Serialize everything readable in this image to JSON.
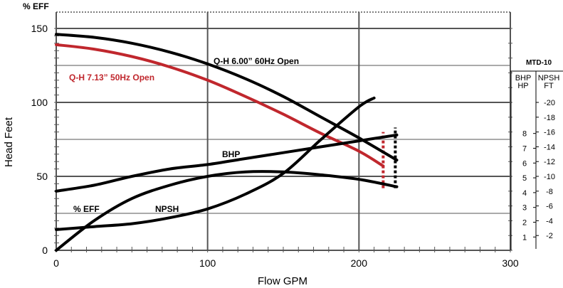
{
  "chart_data": {
    "type": "line",
    "title": "",
    "xlabel": "Flow GPM",
    "ylabel": "Head Feet",
    "secondary_ylabel": "% EFF",
    "xlim": [
      0,
      300
    ],
    "ylim": [
      0,
      150
    ],
    "x_ticks": [
      0,
      100,
      200,
      300
    ],
    "y_ticks": [
      0,
      50,
      100,
      150
    ],
    "grid": true,
    "legend": "none",
    "series": [
      {
        "name": "Q-H 6.00” 60Hz Open",
        "color": "#000000",
        "points": [
          [
            0,
            146
          ],
          [
            25,
            144
          ],
          [
            50,
            140
          ],
          [
            75,
            134
          ],
          [
            100,
            126
          ],
          [
            125,
            116
          ],
          [
            150,
            104
          ],
          [
            175,
            90
          ],
          [
            200,
            76
          ],
          [
            225,
            61
          ]
        ]
      },
      {
        "name": "Q-H 7.13” 50Hz Open",
        "color": "#c0272d",
        "points": [
          [
            0,
            139
          ],
          [
            25,
            136
          ],
          [
            50,
            131
          ],
          [
            75,
            124
          ],
          [
            100,
            115
          ],
          [
            125,
            104
          ],
          [
            150,
            92
          ],
          [
            175,
            79
          ],
          [
            200,
            67
          ],
          [
            216,
            57
          ]
        ]
      },
      {
        "name": "BHP",
        "color": "#000000",
        "points": [
          [
            0,
            40
          ],
          [
            25,
            44
          ],
          [
            50,
            50
          ],
          [
            75,
            55
          ],
          [
            100,
            58
          ],
          [
            125,
            62
          ],
          [
            150,
            66
          ],
          [
            175,
            70
          ],
          [
            200,
            74
          ],
          [
            225,
            78
          ]
        ]
      },
      {
        "name": "% EFF",
        "color": "#000000",
        "points": [
          [
            0,
            0
          ],
          [
            25,
            20
          ],
          [
            50,
            35
          ],
          [
            75,
            44
          ],
          [
            100,
            50
          ],
          [
            125,
            53
          ],
          [
            150,
            53
          ],
          [
            175,
            51
          ],
          [
            200,
            48
          ],
          [
            225,
            43
          ]
        ]
      },
      {
        "name": "NPSH",
        "color": "#000000",
        "points": [
          [
            0,
            14
          ],
          [
            25,
            16
          ],
          [
            50,
            18
          ],
          [
            75,
            22
          ],
          [
            100,
            28
          ],
          [
            125,
            38
          ],
          [
            150,
            52
          ],
          [
            175,
            75
          ],
          [
            200,
            97
          ],
          [
            210,
            103
          ]
        ]
      }
    ],
    "cutoff_lines": [
      {
        "x": 216,
        "y_from": 42,
        "y_to": 80,
        "color": "#c0272d",
        "style": "dashed"
      },
      {
        "x": 224,
        "y_from": 42,
        "y_to": 83,
        "color": "#000000",
        "style": "dashed"
      }
    ],
    "side_scale": {
      "title": "MTD-10",
      "bhp_header": [
        "BHP",
        "HP"
      ],
      "npsh_header": [
        "NPSH",
        "FT"
      ],
      "bhp_ticks": [
        {
          "label": "8",
          "y": 79
        },
        {
          "label": "7",
          "y": 69
        },
        {
          "label": "6",
          "y": 59
        },
        {
          "label": "5",
          "y": 49
        },
        {
          "label": "4",
          "y": 39
        },
        {
          "label": "3",
          "y": 29
        },
        {
          "label": "2",
          "y": 19
        },
        {
          "label": "1",
          "y": 9
        }
      ],
      "npsh_ticks": [
        {
          "label": "-20",
          "y": 100
        },
        {
          "label": "-18",
          "y": 90
        },
        {
          "label": "-16",
          "y": 80
        },
        {
          "label": "-14",
          "y": 70
        },
        {
          "label": "-12",
          "y": 60
        },
        {
          "label": "-10",
          "y": 50
        },
        {
          "label": "-8",
          "y": 40
        },
        {
          "label": "-6",
          "y": 30
        },
        {
          "label": "-4",
          "y": 20
        },
        {
          "label": "-2",
          "y": 10
        }
      ]
    }
  }
}
